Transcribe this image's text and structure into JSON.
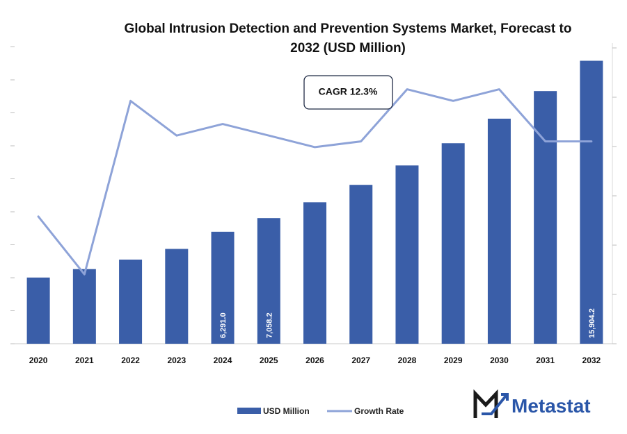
{
  "chart_data": {
    "type": "bar",
    "title": "Global Intrusion Detection and Prevention Systems Market, Forecast to 2032 (USD Million)",
    "title_lines": [
      "Global Intrusion Detection and Prevention Systems Market, Forecast to",
      "2032 (USD Million)"
    ],
    "categories": [
      "2020",
      "2021",
      "2022",
      "2023",
      "2024",
      "2025",
      "2026",
      "2027",
      "2028",
      "2029",
      "2030",
      "2031",
      "2032"
    ],
    "series": [
      {
        "name": "USD Million",
        "type": "bar",
        "color": "#3a5ea8",
        "values": [
          3720,
          4200,
          4730,
          5330,
          6291.0,
          7058.2,
          7950,
          8930,
          10020,
          11270,
          12650,
          14200,
          15904.2
        ],
        "labels": [
          "",
          "",
          "",
          "",
          "6,291.0",
          "7,058.2",
          "",
          "",
          "",
          "",
          "",
          "",
          "15,904.2"
        ]
      },
      {
        "name": "Growth Rate",
        "type": "line",
        "color": "#8ea3d8",
        "values": [
          11.2,
          10.2,
          13.2,
          12.6,
          12.8,
          12.6,
          12.4,
          12.5,
          13.4,
          13.2,
          13.4,
          12.5,
          12.5
        ]
      }
    ],
    "ylim_bar": [
      0,
      16900
    ],
    "ylim_line": [
      9.0,
      14.2
    ],
    "grid": false,
    "legend_position": "bottom",
    "annotation": "CAGR 12.3%"
  },
  "brand": {
    "name": "Metastat",
    "color": "#2a56a8",
    "icon": "metastat-m-logo-icon"
  }
}
